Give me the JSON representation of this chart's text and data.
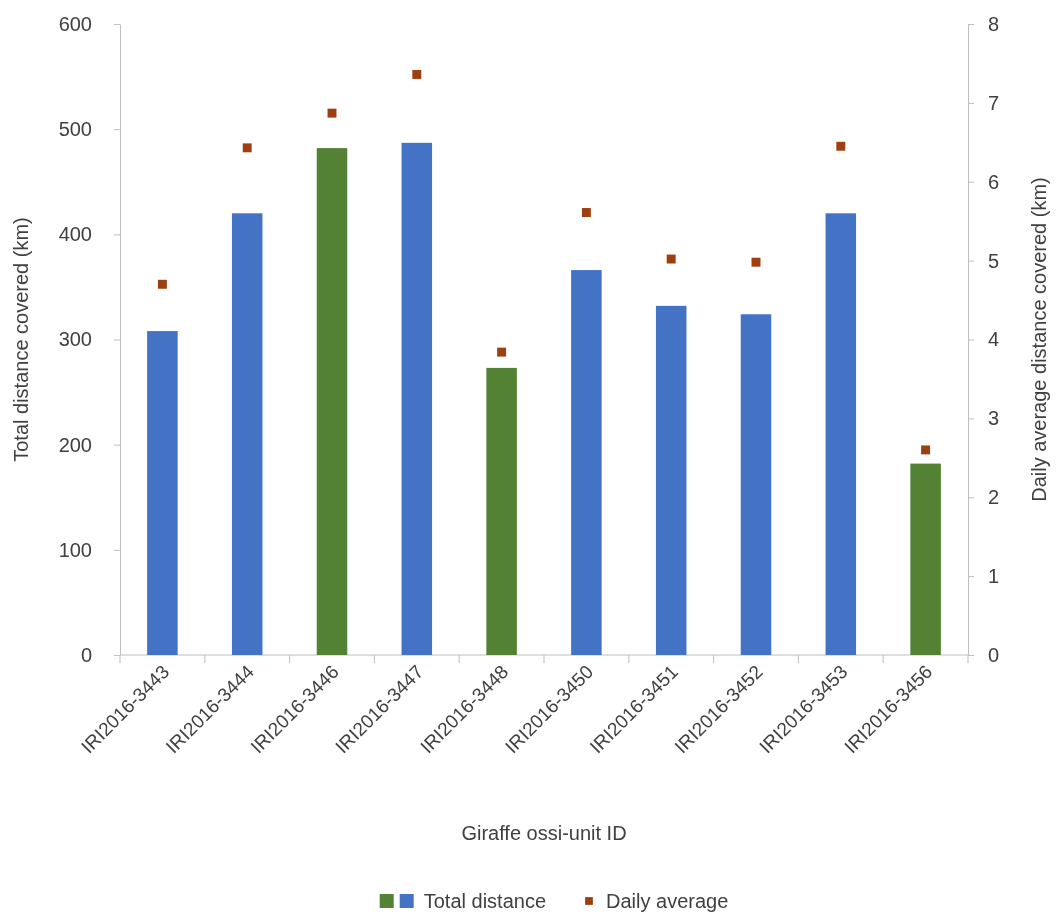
{
  "chart_data": {
    "type": "bar",
    "xlabel": "Giraffe ossi-unit ID",
    "ylabel": "Total distance covered (km)",
    "y2label": "Daily average distance covered (km)",
    "categories": [
      "IRI2016-3443",
      "IRI2016-3444",
      "IRI2016-3446",
      "IRI2016-3447",
      "IRI2016-3448",
      "IRI2016-3450",
      "IRI2016-3451",
      "IRI2016-3452",
      "IRI2016-3453",
      "IRI2016-3456"
    ],
    "series": [
      {
        "name": "Total distance",
        "colors": [
          "#4472c4",
          "#4472c4",
          "#548235",
          "#4472c4",
          "#548235",
          "#4472c4",
          "#4472c4",
          "#4472c4",
          "#4472c4",
          "#548235"
        ],
        "values": [
          308,
          420,
          482,
          487,
          273,
          366,
          332,
          324,
          420,
          182
        ]
      },
      {
        "name": "Daily average",
        "type": "scatter",
        "axis": "y2",
        "marker": "square",
        "color": "#9e3f12",
        "values": [
          4.7,
          6.43,
          6.87,
          7.36,
          3.84,
          5.61,
          5.02,
          4.98,
          6.45,
          2.6
        ]
      }
    ],
    "ylim": [
      0,
      600
    ],
    "yticks": [
      0,
      100,
      200,
      300,
      400,
      500,
      600
    ],
    "y2lim": [
      0,
      8
    ],
    "y2ticks": [
      0,
      1,
      2,
      3,
      4,
      5,
      6,
      7,
      8
    ],
    "grid": false,
    "legend": "bottom"
  }
}
